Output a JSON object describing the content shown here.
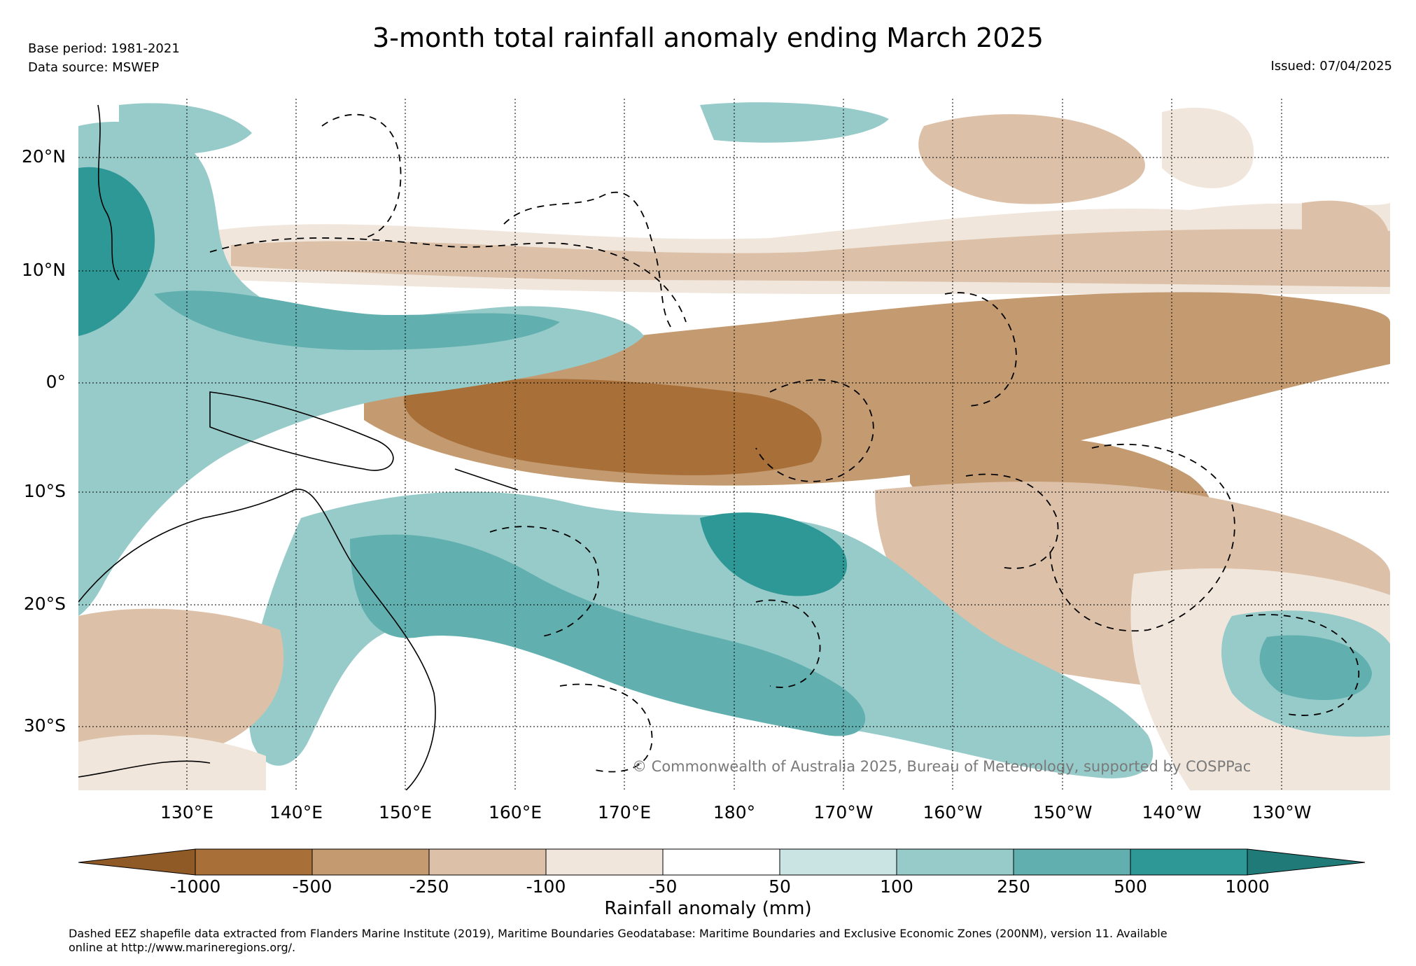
{
  "header": {
    "title": "3-month total rainfall anomaly ending March 2025",
    "base_period": "Base period: 1981-2021",
    "data_source": "Data source: MSWEP",
    "issued": "Issued: 07/04/2025"
  },
  "map": {
    "latitude_labels": [
      "20°N",
      "10°N",
      "0°",
      "10°S",
      "20°S",
      "30°S"
    ],
    "longitude_labels": [
      "130°E",
      "140°E",
      "150°E",
      "160°E",
      "170°E",
      "180°",
      "170°W",
      "160°W",
      "150°W",
      "140°W",
      "130°W"
    ],
    "copyright": "© Commonwealth of Australia 2025, Bureau of Meteorology, supported by COSPPac"
  },
  "colorbar": {
    "tick_labels": [
      "-1000",
      "-500",
      "-250",
      "-100",
      "-50",
      "50",
      "100",
      "250",
      "500",
      "1000"
    ],
    "label": "Rainfall anomaly (mm)",
    "colors": [
      "#8f5a26",
      "#a87038",
      "#c49a70",
      "#dcc1a8",
      "#f1e6dc",
      "#ffffff",
      "#c9e4e3",
      "#96cbca",
      "#61b0af",
      "#2e9896",
      "#1f7a78"
    ]
  },
  "footer": {
    "line1": "Dashed EEZ shapefile data extracted from Flanders Marine Institute (2019), Maritime Boundaries Geodatabase: Maritime Boundaries and Exclusive Economic Zones (200NM), version 11. Available",
    "line2": "online at http://www.marineregions.org/."
  }
}
